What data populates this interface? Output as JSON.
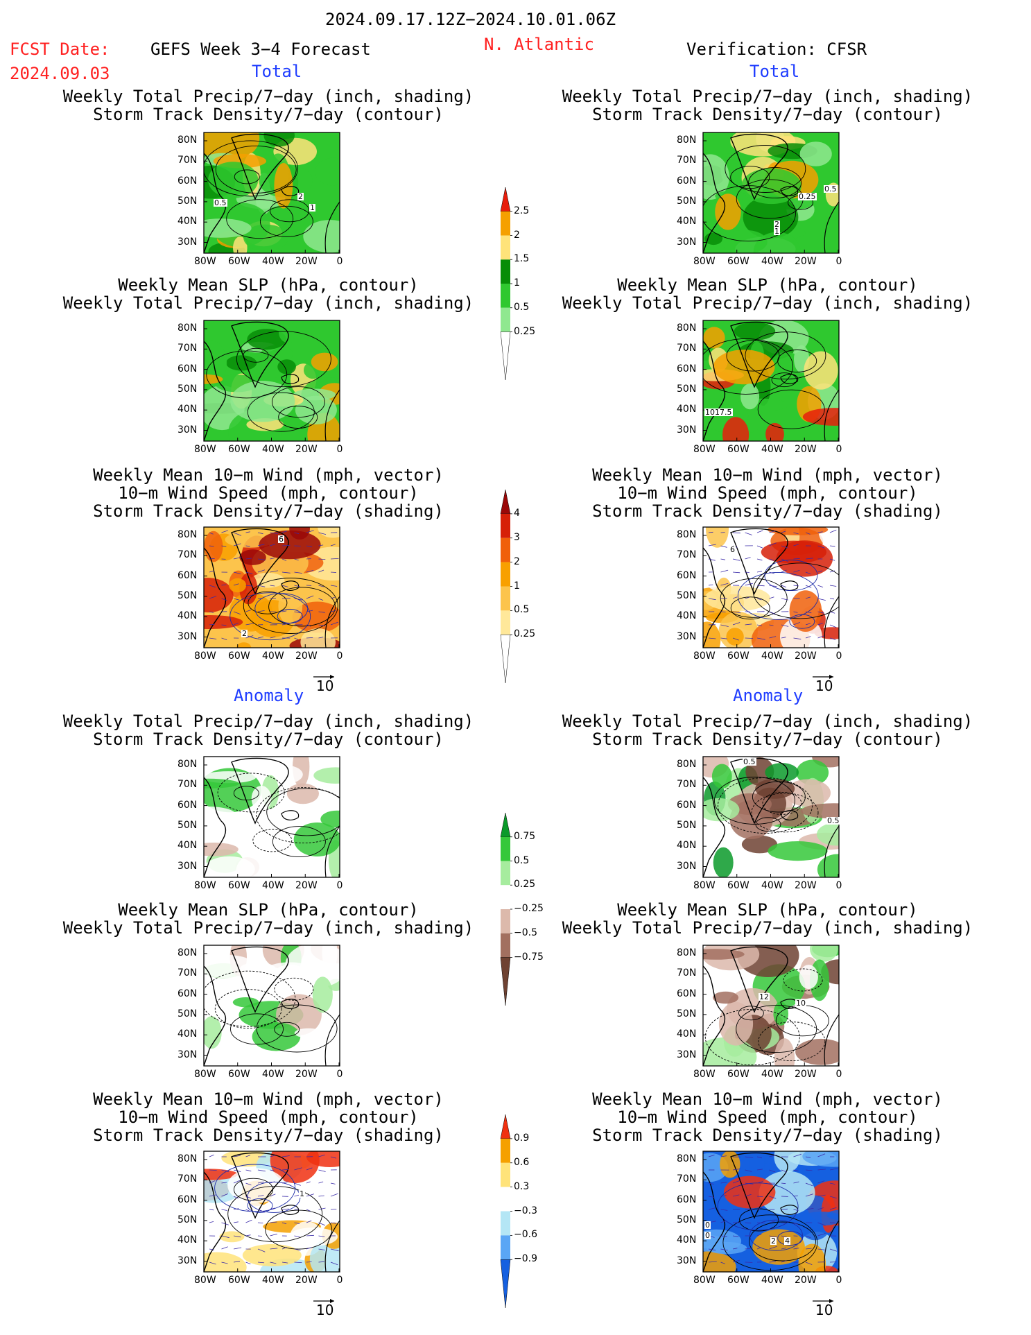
{
  "header": {
    "valid_range": "2024.09.17.12Z−2024.10.01.06Z",
    "fcst_label": "FCST Date:",
    "fcst_date": "2024.09.03",
    "model": "GEFS Week 3−4 Forecast",
    "region": "N. Atlantic",
    "verification": "Verification: CFSR"
  },
  "sections": {
    "total_left": "Total",
    "total_right": "Total",
    "anomaly_left": "Anomaly",
    "anomaly_right": "Anomaly"
  },
  "panel_titles": {
    "precip_storm": [
      "Weekly Total Precip/7−day (inch, shading)",
      "Storm Track Density/7−day (contour)"
    ],
    "slp_precip": [
      "Weekly Mean SLP (hPa, contour)",
      "Weekly Total Precip/7−day (inch, shading)"
    ],
    "wind_storm": [
      "Weekly Mean 10−m Wind (mph, vector)",
      "10−m Wind Speed (mph, contour)",
      "Storm Track Density/7−day (shading)"
    ]
  },
  "axes": {
    "y_ticks": [
      "80N",
      "70N",
      "60N",
      "50N",
      "40N",
      "30N"
    ],
    "x_ticks": [
      "80W",
      "60W",
      "40W",
      "20W",
      "0"
    ]
  },
  "vector_ref": "10",
  "colorbars": {
    "precip_total": {
      "labels": [
        "2.5",
        "2",
        "1.5",
        "1",
        "0.5",
        "0.25"
      ],
      "colors": [
        "#e81e0c",
        "#f5a000",
        "#ffe37a",
        "#078d07",
        "#2fc82f",
        "#8fe88f",
        "#ffffff"
      ]
    },
    "storm_total": {
      "labels": [
        "4",
        "3",
        "2",
        "1",
        "0.5",
        "0.25"
      ],
      "colors": [
        "#9a0808",
        "#d62008",
        "#f0600a",
        "#f8a000",
        "#fcc44c",
        "#ffe89a",
        "#ffffff"
      ]
    },
    "precip_anom": {
      "labels": [
        "0.75",
        "0.5",
        "0.25",
        "−0.25",
        "−0.5",
        "−0.75"
      ],
      "colors": [
        "#0a9a2a",
        "#35c83a",
        "#a6ec9e",
        "#ffffff",
        "#dcb9ab",
        "#a27060",
        "#6e4232"
      ]
    },
    "storm_anom": {
      "labels": [
        "0.9",
        "0.6",
        "0.3",
        "−0.3",
        "−0.6",
        "−0.9"
      ],
      "colors": [
        "#f03010",
        "#f5a000",
        "#ffe37a",
        "#ffffff",
        "#b4e6f5",
        "#5aa6f5",
        "#1560e0"
      ]
    }
  },
  "contour_labels": {
    "L1": [
      "0.5",
      "2",
      "1"
    ],
    "R1": [
      "0.25",
      "0.5",
      "2",
      "1"
    ],
    "R2": [
      "1017.5"
    ],
    "L3": [
      "6",
      "2"
    ],
    "R3": [
      "6"
    ],
    "R4": [
      "0.5",
      "0.5"
    ],
    "R5": [
      "12",
      "10"
    ],
    "L6": [
      "1"
    ],
    "R6": [
      "0",
      "0",
      "2",
      "4"
    ]
  }
}
